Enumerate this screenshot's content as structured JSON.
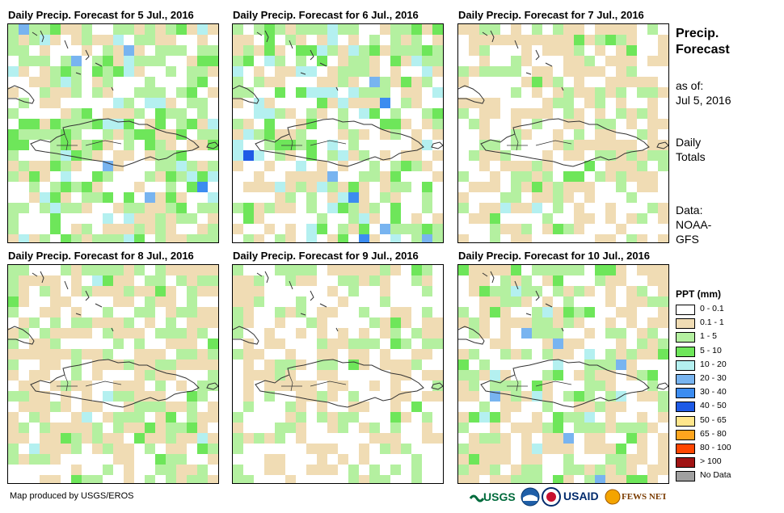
{
  "panels": [
    {
      "title": "Daily Precip. Forecast for 5 Jul., 2016"
    },
    {
      "title": "Daily Precip. Forecast for 6 Jul., 2016"
    },
    {
      "title": "Daily Precip. Forecast for 7 Jul., 2016"
    },
    {
      "title": "Daily Precip. Forecast for 8 Jul., 2016"
    },
    {
      "title": "Daily Precip. Forecast for 9 Jul., 2016"
    },
    {
      "title": "Daily Precip. Forecast for 10 Jul., 2016"
    }
  ],
  "side": {
    "title1": "Precip.",
    "title2": "Forecast",
    "asof1": "as of:",
    "asof2": "Jul 5, 2016",
    "daily1": "Daily",
    "daily2": "Totals",
    "data1": "Data:",
    "data2": "NOAA-",
    "data3": "GFS"
  },
  "legend": {
    "title": "PPT (mm)",
    "items": [
      {
        "label": "0 - 0.1",
        "color": "#ffffff"
      },
      {
        "label": "0.1 - 1",
        "color": "#f0dcb4"
      },
      {
        "label": "1 - 5",
        "color": "#b4f0a0"
      },
      {
        "label": "5 - 10",
        "color": "#6ee65a"
      },
      {
        "label": "10 - 20",
        "color": "#b4f0f0"
      },
      {
        "label": "20 - 30",
        "color": "#78b4f0"
      },
      {
        "label": "30 - 40",
        "color": "#3c8cf0"
      },
      {
        "label": "40 - 50",
        "color": "#1e5ae6"
      },
      {
        "label": "50 - 65",
        "color": "#ffe68c"
      },
      {
        "label": "65 - 80",
        "color": "#ffa51e"
      },
      {
        "label": "80 - 100",
        "color": "#ff4600"
      },
      {
        "label": "> 100",
        "color": "#a01414"
      },
      {
        "label": "No Data",
        "color": "#a0a0a0"
      }
    ]
  },
  "footer": {
    "text": "Map produced by USGS/EROS"
  },
  "logos": {
    "usgs": "USGS",
    "usaid": "USAID",
    "fewsnet": "FEWS NET"
  }
}
